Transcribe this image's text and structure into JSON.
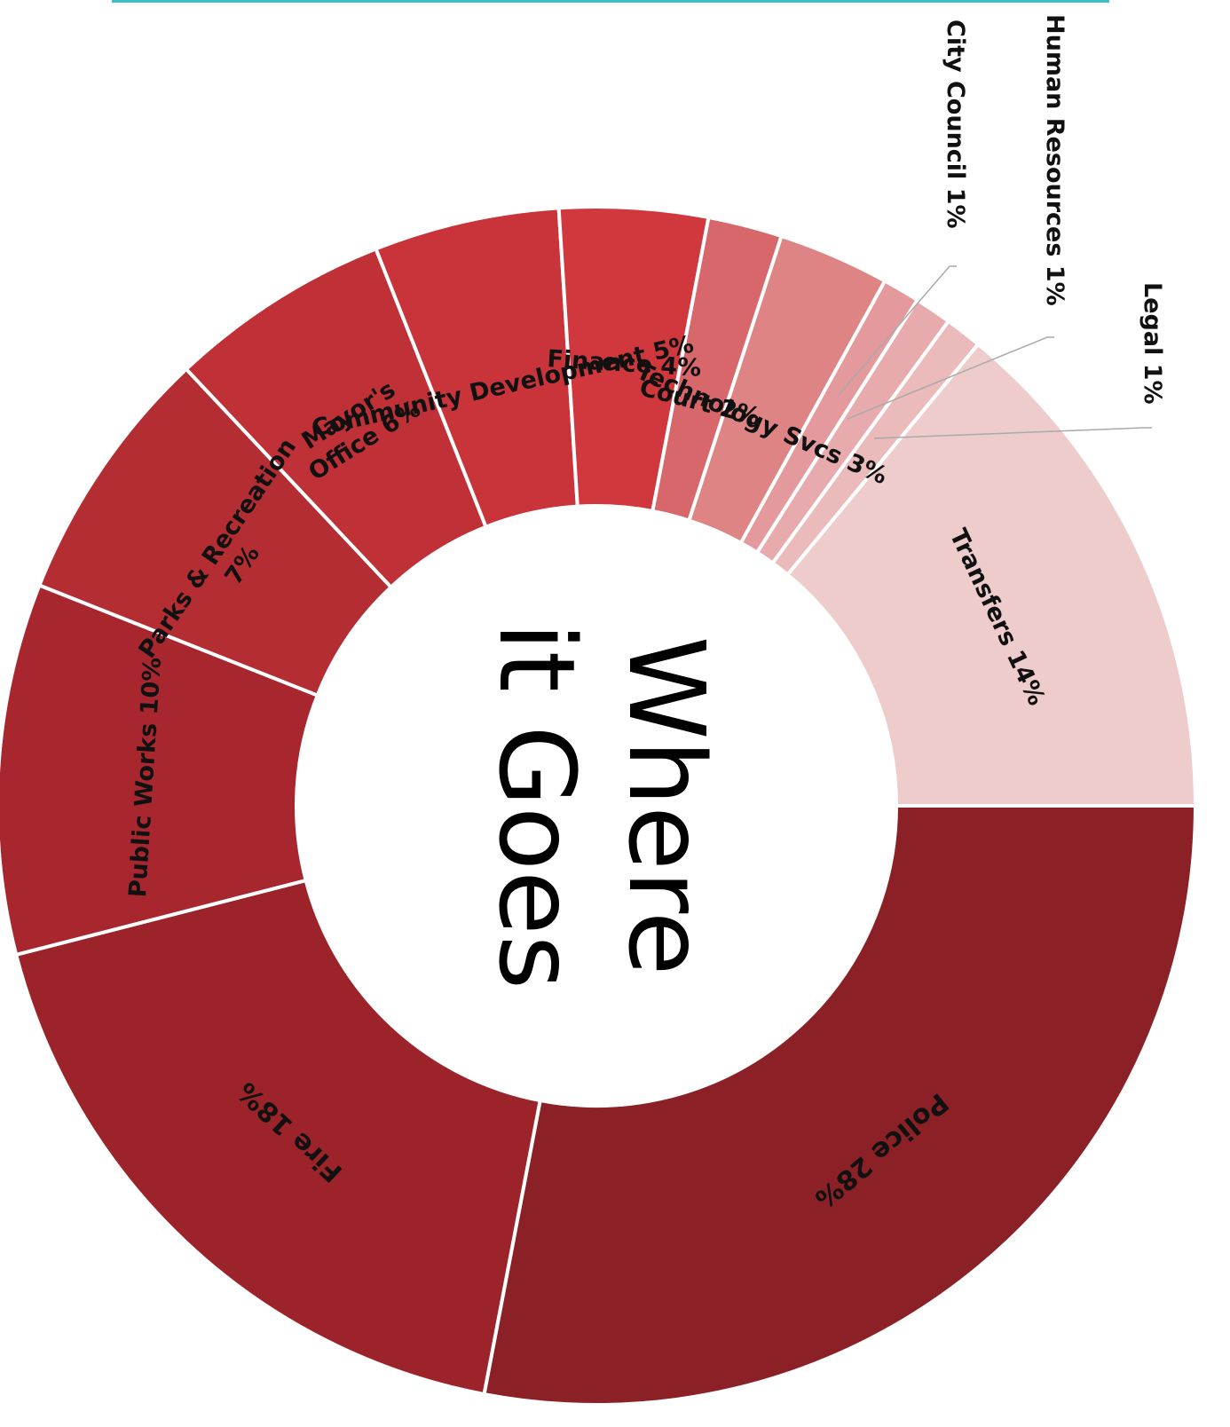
{
  "page": {
    "accent": "#3dbec8"
  },
  "chart_data": {
    "type": "pie",
    "title": "Where it Goes",
    "title_lines": [
      "Where",
      "it Goes"
    ],
    "unit": "%",
    "segments": [
      {
        "name": "Police",
        "value": 28,
        "label": "Police 28%",
        "color": "#8b2126"
      },
      {
        "name": "Fire",
        "value": 18,
        "label": "Fire 18%",
        "color": "#9c232a"
      },
      {
        "name": "Public Works",
        "value": 10,
        "label": "Public Works 10%",
        "color": "#a8272e"
      },
      {
        "name": "Parks & Recreation",
        "value": 7,
        "label": "Parks & Recreation 7%",
        "label_lines": [
          "Parks & Recreation",
          "7%"
        ],
        "color": "#b42d33"
      },
      {
        "name": "Mayor's Office",
        "value": 6,
        "label": "Mayor's Office 6%",
        "label_lines": [
          "Mayor's",
          "Office 6%"
        ],
        "color": "#bf3037"
      },
      {
        "name": "Community Development",
        "value": 5,
        "label": "Community Development 5%",
        "color": "#c9343b"
      },
      {
        "name": "Finance",
        "value": 4,
        "label": "Finance 4%",
        "color": "#d1383e"
      },
      {
        "name": "Court",
        "value": 2,
        "label": "Court 2%",
        "color": "#d8676b"
      },
      {
        "name": "Technology Svcs",
        "value": 3,
        "label": "Technology Svcs 3%",
        "color": "#df8485"
      },
      {
        "name": "City Council",
        "value": 1,
        "label": "City Council 1%",
        "color": "#e49a9c",
        "callout": true
      },
      {
        "name": "Human Resources",
        "value": 1,
        "label": "Human Resources 1%",
        "color": "#e8abad",
        "callout": true
      },
      {
        "name": "Legal",
        "value": 1,
        "label": "Legal 1%",
        "color": "#ebbbbc",
        "callout": true
      },
      {
        "name": "Transfers",
        "value": 14,
        "label": "Transfers 14%",
        "color": "#eecccc"
      }
    ]
  }
}
